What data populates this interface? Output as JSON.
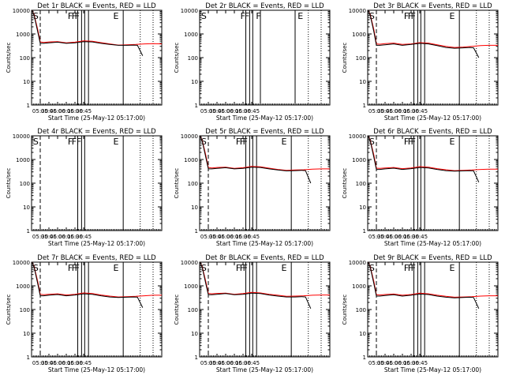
{
  "chart_data": {
    "type": "line",
    "panel_count": 9,
    "title_suffix": "BLACK = Events, RED = LLD",
    "ylabel": "Counts/sec",
    "xlabel": "Start Time (25-May-12 05:17:00)",
    "y_scale": "log",
    "ylim": [
      1,
      10000
    ],
    "xlim": [
      3.25,
      7.0
    ],
    "x_ticks": [
      "05:30",
      "05:45",
      "06:00",
      "06:15",
      "06:30",
      "06:45"
    ],
    "y_ticks": [
      "1",
      "10",
      "100",
      "1000",
      "10000"
    ],
    "series_colors": {
      "events": "#000000",
      "lld": "#ff0000"
    },
    "panels": [
      {
        "title": "Det 1r",
        "markers": [
          {
            "label": "S",
            "x": 3.27
          },
          {
            "label": "F",
            "x": 4.27
          },
          {
            "label": "F",
            "x": 4.38
          },
          {
            "label": "F",
            "x": 4.47
          },
          {
            "label": "E",
            "x": 5.58
          }
        ],
        "dashed_lines": [
          3.5
        ],
        "solid_lines": [
          4.58,
          4.69,
          4.78,
          4.89,
          5.89
        ],
        "dotted_lines": [
          6.38,
          6.75
        ],
        "series": [
          {
            "name": "Events",
            "x": [
              3.27,
              3.33,
              3.43,
              3.5,
              3.6,
              3.75,
              4.0,
              4.25,
              4.5,
              4.75,
              5.0,
              5.25,
              5.5,
              5.75,
              6.0,
              6.2,
              6.3,
              6.45
            ],
            "y": [
              10000,
              5500,
              1200,
              400,
              400,
              420,
              450,
              400,
              420,
              470,
              460,
              400,
              360,
              330,
              330,
              340,
              330,
              120
            ]
          },
          {
            "name": "LLD",
            "x": [
              3.27,
              3.33,
              3.43,
              3.5,
              3.6,
              3.75,
              4.0,
              4.25,
              4.5,
              4.75,
              5.0,
              5.25,
              5.5,
              5.75,
              6.0,
              6.25,
              6.5,
              6.75,
              7.0
            ],
            "y": [
              10000,
              6000,
              1500,
              460,
              440,
              460,
              470,
              420,
              450,
              510,
              490,
              430,
              380,
              340,
              350,
              360,
              380,
              390,
              380
            ]
          }
        ]
      },
      {
        "title": "Det 2r",
        "markers": [
          {
            "label": "S",
            "x": 3.27
          },
          {
            "label": "F",
            "x": 4.4
          },
          {
            "label": "F",
            "x": 4.52
          },
          {
            "label": "F",
            "x": 4.85
          },
          {
            "label": "E",
            "x": 6.05
          }
        ],
        "dashed_lines": [],
        "solid_lines": [
          4.58,
          4.69,
          4.78,
          5.0,
          6.0
        ],
        "dotted_lines": [
          6.38,
          6.75
        ],
        "series": []
      },
      {
        "title": "Det 3r",
        "markers": [
          {
            "label": "S",
            "x": 3.27
          },
          {
            "label": "F",
            "x": 4.27
          },
          {
            "label": "F",
            "x": 4.38
          },
          {
            "label": "F",
            "x": 4.47
          },
          {
            "label": "E",
            "x": 5.58
          }
        ],
        "dashed_lines": [
          3.5
        ],
        "solid_lines": [
          4.58,
          4.69,
          4.78,
          4.89,
          5.89
        ],
        "dotted_lines": [
          6.38,
          6.75
        ],
        "series": [
          {
            "name": "Events",
            "x": [
              3.27,
              3.33,
              3.43,
              3.5,
              3.6,
              3.75,
              4.0,
              4.25,
              4.5,
              4.75,
              5.0,
              5.25,
              5.5,
              5.75,
              6.0,
              6.2,
              6.3,
              6.45
            ],
            "y": [
              10000,
              5500,
              1200,
              330,
              330,
              350,
              380,
              330,
              360,
              400,
              380,
              320,
              270,
              250,
              260,
              270,
              260,
              100
            ]
          },
          {
            "name": "LLD",
            "x": [
              3.27,
              3.33,
              3.43,
              3.5,
              3.6,
              3.75,
              4.0,
              4.25,
              4.5,
              4.75,
              5.0,
              5.25,
              5.5,
              5.75,
              6.0,
              6.25,
              6.5,
              6.75,
              7.0
            ],
            "y": [
              10000,
              6000,
              1500,
              380,
              370,
              390,
              410,
              360,
              380,
              430,
              410,
              350,
              300,
              270,
              280,
              300,
              320,
              330,
              330
            ]
          }
        ]
      },
      {
        "title": "Det 4r",
        "markers": [
          {
            "label": "S",
            "x": 3.27
          },
          {
            "label": "F",
            "x": 4.27
          },
          {
            "label": "F",
            "x": 4.38
          },
          {
            "label": "F",
            "x": 4.52
          },
          {
            "label": "E",
            "x": 5.58
          }
        ],
        "dashed_lines": [
          3.5
        ],
        "solid_lines": [
          4.58,
          4.69,
          4.78,
          5.89
        ],
        "dotted_lines": [
          6.38,
          6.75
        ],
        "series": []
      },
      {
        "title": "Det 5r",
        "markers": [
          {
            "label": "S",
            "x": 3.27
          },
          {
            "label": "F",
            "x": 4.27
          },
          {
            "label": "F",
            "x": 4.38
          },
          {
            "label": "F",
            "x": 4.47
          },
          {
            "label": "E",
            "x": 5.58
          }
        ],
        "dashed_lines": [
          3.5
        ],
        "solid_lines": [
          4.58,
          4.69,
          4.78,
          4.89,
          5.89
        ],
        "dotted_lines": [
          6.38,
          6.75
        ],
        "series": [
          {
            "name": "Events",
            "x": [
              3.27,
              3.33,
              3.43,
              3.5,
              3.6,
              3.75,
              4.0,
              4.25,
              4.5,
              4.75,
              5.0,
              5.25,
              5.5,
              5.75,
              6.0,
              6.2,
              6.3,
              6.45
            ],
            "y": [
              10000,
              5500,
              1200,
              400,
              400,
              420,
              450,
              400,
              420,
              470,
              460,
              400,
              360,
              330,
              340,
              350,
              340,
              100
            ]
          },
          {
            "name": "LLD",
            "x": [
              3.27,
              3.33,
              3.43,
              3.5,
              3.6,
              3.75,
              4.0,
              4.25,
              4.5,
              4.75,
              5.0,
              5.25,
              5.5,
              5.75,
              6.0,
              6.25,
              6.5,
              6.75,
              7.0
            ],
            "y": [
              10000,
              6000,
              1500,
              460,
              440,
              460,
              470,
              420,
              450,
              510,
              490,
              430,
              380,
              350,
              360,
              370,
              390,
              400,
              400
            ]
          }
        ]
      },
      {
        "title": "Det 6r",
        "markers": [
          {
            "label": "S",
            "x": 3.27
          },
          {
            "label": "F",
            "x": 4.27
          },
          {
            "label": "F",
            "x": 4.38
          },
          {
            "label": "F",
            "x": 4.47
          },
          {
            "label": "E",
            "x": 5.58
          }
        ],
        "dashed_lines": [
          3.5
        ],
        "solid_lines": [
          4.58,
          4.69,
          4.78,
          4.89,
          5.89
        ],
        "dotted_lines": [
          6.38,
          6.75
        ],
        "series": [
          {
            "name": "Events",
            "x": [
              3.27,
              3.33,
              3.43,
              3.5,
              3.6,
              3.75,
              4.0,
              4.25,
              4.5,
              4.75,
              5.0,
              5.25,
              5.5,
              5.75,
              6.0,
              6.2,
              6.3,
              6.45
            ],
            "y": [
              10000,
              5500,
              1200,
              380,
              380,
              400,
              430,
              380,
              410,
              460,
              440,
              380,
              340,
              320,
              330,
              340,
              330,
              110
            ]
          },
          {
            "name": "LLD",
            "x": [
              3.27,
              3.33,
              3.43,
              3.5,
              3.6,
              3.75,
              4.0,
              4.25,
              4.5,
              4.75,
              5.0,
              5.25,
              5.5,
              5.75,
              6.0,
              6.25,
              6.5,
              6.75,
              7.0
            ],
            "y": [
              10000,
              6000,
              1500,
              430,
              420,
              440,
              460,
              410,
              440,
              500,
              470,
              410,
              370,
              340,
              350,
              360,
              380,
              390,
              390
            ]
          }
        ]
      },
      {
        "title": "Det 7r",
        "markers": [
          {
            "label": "S",
            "x": 3.27
          },
          {
            "label": "F",
            "x": 4.27
          },
          {
            "label": "F",
            "x": 4.38
          },
          {
            "label": "F",
            "x": 4.47
          },
          {
            "label": "E",
            "x": 5.58
          }
        ],
        "dashed_lines": [
          3.5
        ],
        "solid_lines": [
          4.58,
          4.69,
          4.78,
          4.89,
          5.89
        ],
        "dotted_lines": [
          6.38,
          6.75
        ],
        "series": [
          {
            "name": "Events",
            "x": [
              3.27,
              3.33,
              3.43,
              3.5,
              3.6,
              3.75,
              4.0,
              4.25,
              4.5,
              4.75,
              5.0,
              5.25,
              5.5,
              5.75,
              6.0,
              6.2,
              6.3,
              6.45
            ],
            "y": [
              10000,
              5500,
              1200,
              380,
              380,
              400,
              430,
              380,
              410,
              460,
              440,
              380,
              340,
              320,
              330,
              340,
              330,
              120
            ]
          },
          {
            "name": "LLD",
            "x": [
              3.27,
              3.33,
              3.43,
              3.5,
              3.6,
              3.75,
              4.0,
              4.25,
              4.5,
              4.75,
              5.0,
              5.25,
              5.5,
              5.75,
              6.0,
              6.25,
              6.5,
              6.75,
              7.0
            ],
            "y": [
              10000,
              6000,
              1500,
              440,
              420,
              440,
              460,
              410,
              440,
              500,
              470,
              410,
              370,
              340,
              350,
              360,
              380,
              400,
              400
            ]
          }
        ]
      },
      {
        "title": "Det 8r",
        "markers": [
          {
            "label": "S",
            "x": 3.27
          },
          {
            "label": "F",
            "x": 4.27
          },
          {
            "label": "F",
            "x": 4.38
          },
          {
            "label": "F",
            "x": 4.47
          },
          {
            "label": "E",
            "x": 5.58
          }
        ],
        "dashed_lines": [
          3.5
        ],
        "solid_lines": [
          4.58,
          4.69,
          4.78,
          4.89,
          5.89
        ],
        "dotted_lines": [
          6.38,
          6.75
        ],
        "series": [
          {
            "name": "Events",
            "x": [
              3.27,
              3.33,
              3.43,
              3.5,
              3.6,
              3.75,
              4.0,
              4.25,
              4.5,
              4.75,
              5.0,
              5.25,
              5.5,
              5.75,
              6.0,
              6.2,
              6.3,
              6.45
            ],
            "y": [
              10000,
              5500,
              1200,
              420,
              420,
              440,
              470,
              420,
              440,
              490,
              470,
              410,
              370,
              340,
              340,
              350,
              340,
              110
            ]
          },
          {
            "name": "LLD",
            "x": [
              3.27,
              3.33,
              3.43,
              3.5,
              3.6,
              3.75,
              4.0,
              4.25,
              4.5,
              4.75,
              5.0,
              5.25,
              5.5,
              5.75,
              6.0,
              6.25,
              6.5,
              6.75,
              7.0
            ],
            "y": [
              10000,
              6000,
              1500,
              480,
              460,
              480,
              490,
              440,
              470,
              530,
              500,
              440,
              400,
              360,
              370,
              380,
              400,
              410,
              410
            ]
          }
        ]
      },
      {
        "title": "Det 9r",
        "markers": [
          {
            "label": "S",
            "x": 3.27
          },
          {
            "label": "F",
            "x": 4.27
          },
          {
            "label": "F",
            "x": 4.38
          },
          {
            "label": "F",
            "x": 4.47
          },
          {
            "label": "E",
            "x": 5.58
          }
        ],
        "dashed_lines": [
          3.5
        ],
        "solid_lines": [
          4.58,
          4.69,
          4.78,
          4.89,
          5.89
        ],
        "dotted_lines": [
          6.38,
          6.75
        ],
        "series": [
          {
            "name": "Events",
            "x": [
              3.27,
              3.33,
              3.43,
              3.5,
              3.6,
              3.75,
              4.0,
              4.25,
              4.5,
              4.75,
              5.0,
              5.25,
              5.5,
              5.75,
              6.0,
              6.2,
              6.3,
              6.45
            ],
            "y": [
              10000,
              5500,
              1200,
              370,
              370,
              390,
              420,
              370,
              400,
              450,
              430,
              370,
              330,
              310,
              320,
              330,
              320,
              110
            ]
          },
          {
            "name": "LLD",
            "x": [
              3.27,
              3.33,
              3.43,
              3.5,
              3.6,
              3.75,
              4.0,
              4.25,
              4.5,
              4.75,
              5.0,
              5.25,
              5.5,
              5.75,
              6.0,
              6.25,
              6.5,
              6.75,
              7.0
            ],
            "y": [
              10000,
              6000,
              1500,
              420,
              410,
              430,
              450,
              400,
              430,
              490,
              460,
              400,
              360,
              330,
              340,
              350,
              370,
              380,
              380
            ]
          }
        ]
      }
    ]
  }
}
